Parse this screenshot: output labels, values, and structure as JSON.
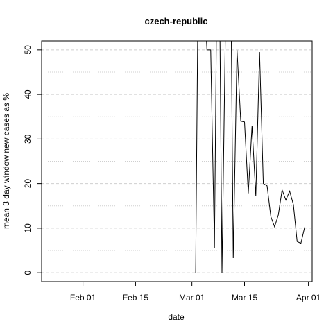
{
  "chart_data": {
    "type": "line",
    "title": "czech-republic",
    "xlabel": "date",
    "ylabel": "mean  3  day window new cases as %",
    "x_ticks": [
      "2020-02-01",
      "2020-02-15",
      "2020-03-01",
      "2020-03-15",
      "2020-04-01"
    ],
    "x_tick_labels": [
      "Feb 01",
      "Feb 15",
      "Mar 01",
      "Mar 15",
      "Apr 01"
    ],
    "y_ticks": [
      0,
      10,
      20,
      30,
      40,
      50
    ],
    "xlim": [
      "2020-01-21",
      "2020-04-02"
    ],
    "ylim": [
      -2,
      52
    ],
    "grid": true,
    "series": [
      {
        "x": [
          "2020-03-02",
          "2020-03-03",
          "2020-03-04",
          "2020-03-05",
          "2020-03-06",
          "2020-03-07",
          "2020-03-08",
          "2020-03-09",
          "2020-03-10",
          "2020-03-11",
          "2020-03-12",
          "2020-03-13",
          "2020-03-14",
          "2020-03-15",
          "2020-03-16",
          "2020-03-17",
          "2020-03-18",
          "2020-03-19",
          "2020-03-20",
          "2020-03-21",
          "2020-03-22",
          "2020-03-23",
          "2020-03-24",
          "2020-03-25",
          "2020-03-26",
          "2020-03-27",
          "2020-03-28",
          "2020-03-29",
          "2020-03-30",
          "2020-03-31"
        ],
        "y": [
          0,
          100,
          66.7,
          50,
          50,
          5.5,
          100,
          0,
          60,
          100,
          3.3,
          50,
          34,
          33.8,
          17.8,
          33,
          17.2,
          49.5,
          20,
          19.5,
          12.6,
          10.3,
          13,
          18.6,
          16.3,
          18.3,
          15.3,
          7,
          6.6,
          10.2
        ]
      }
    ]
  }
}
